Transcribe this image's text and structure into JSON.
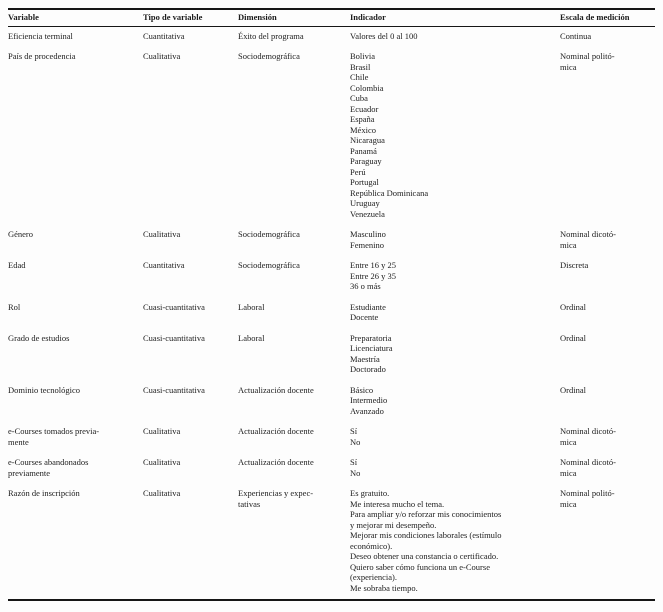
{
  "colors": {
    "background": "#fdfdfd",
    "text": "#1c1c1c",
    "rule": "#161616"
  },
  "table": {
    "columns": [
      "Variable",
      "Tipo de variable",
      "Dimensión",
      "Indicador",
      "Escala de medición"
    ],
    "field_keys": [
      "variable",
      "tipo_de_variable",
      "dimension",
      "indicador",
      "escala_de_medicion"
    ],
    "rows": [
      {
        "variable": [
          "Eficiencia terminal"
        ],
        "tipo_de_variable": [
          "Cuantitativa"
        ],
        "dimension": [
          "Éxito del programa"
        ],
        "indicador": [
          "Valores del 0 al 100"
        ],
        "escala_de_medicion": [
          "Continua"
        ]
      },
      {
        "variable": [
          "País de procedencia"
        ],
        "tipo_de_variable": [
          "Cualitativa"
        ],
        "dimension": [
          "Sociodemográfica"
        ],
        "indicador": [
          "Bolivia",
          "Brasil",
          "Chile",
          "Colombia",
          "Cuba",
          "Ecuador",
          "España",
          "México",
          "Nicaragua",
          "Panamá",
          "Paraguay",
          "Perú",
          "Portugal",
          "República Dominicana",
          "Uruguay",
          "Venezuela"
        ],
        "escala_de_medicion": [
          "Nominal politó-",
          "mica"
        ]
      },
      {
        "variable": [
          "Género"
        ],
        "tipo_de_variable": [
          "Cualitativa"
        ],
        "dimension": [
          "Sociodemográfica"
        ],
        "indicador": [
          "Masculino",
          "Femenino"
        ],
        "escala_de_medicion": [
          "Nominal dicotó-",
          "mica"
        ]
      },
      {
        "variable": [
          "Edad"
        ],
        "tipo_de_variable": [
          "Cuantitativa"
        ],
        "dimension": [
          "Sociodemográfica"
        ],
        "indicador": [
          "Entre 16 y 25",
          "Entre 26 y 35",
          "36 o más"
        ],
        "escala_de_medicion": [
          "Discreta"
        ]
      },
      {
        "variable": [
          "Rol"
        ],
        "tipo_de_variable": [
          "Cuasi-cuantitativa"
        ],
        "dimension": [
          "Laboral"
        ],
        "indicador": [
          "Estudiante",
          "Docente"
        ],
        "escala_de_medicion": [
          "Ordinal"
        ]
      },
      {
        "variable": [
          "Grado de estudios"
        ],
        "tipo_de_variable": [
          "Cuasi-cuantitativa"
        ],
        "dimension": [
          "Laboral"
        ],
        "indicador": [
          "Preparatoria",
          "Licenciatura",
          "Maestría",
          "Doctorado"
        ],
        "escala_de_medicion": [
          "Ordinal"
        ]
      },
      {
        "variable": [
          "Dominio tecnológico"
        ],
        "tipo_de_variable": [
          "Cuasi-cuantitativa"
        ],
        "dimension": [
          "Actualización docente"
        ],
        "indicador": [
          "Básico",
          "Intermedio",
          "Avanzado"
        ],
        "escala_de_medicion": [
          "Ordinal"
        ]
      },
      {
        "variable": [
          "e-Courses tomados previa-",
          "mente"
        ],
        "tipo_de_variable": [
          "Cualitativa"
        ],
        "dimension": [
          "Actualización docente"
        ],
        "indicador": [
          "Sí",
          "No"
        ],
        "escala_de_medicion": [
          "Nominal dicotó-",
          "mica"
        ]
      },
      {
        "variable": [
          "e-Courses abandonados",
          "previamente"
        ],
        "tipo_de_variable": [
          "Cualitativa"
        ],
        "dimension": [
          "Actualización docente"
        ],
        "indicador": [
          "Sí",
          "No"
        ],
        "escala_de_medicion": [
          "Nominal dicotó-",
          "mica"
        ]
      },
      {
        "variable": [
          "Razón de inscripción"
        ],
        "tipo_de_variable": [
          "Cualitativa"
        ],
        "dimension": [
          "Experiencias y expec-",
          "tativas"
        ],
        "indicador": [
          "Es gratuito.",
          "Me interesa mucho el tema.",
          "Para ampliar y/o reforzar mis conocimientos",
          "y mejorar mi desempeño.",
          "Mejorar mis condiciones laborales (estímulo",
          "económico).",
          "Deseo obtener una constancia o certificado.",
          "Quiero saber cómo funciona un e-Course",
          "(experiencia).",
          "Me sobraba tiempo."
        ],
        "escala_de_medicion": [
          "Nominal politó-",
          "mica"
        ]
      }
    ]
  }
}
